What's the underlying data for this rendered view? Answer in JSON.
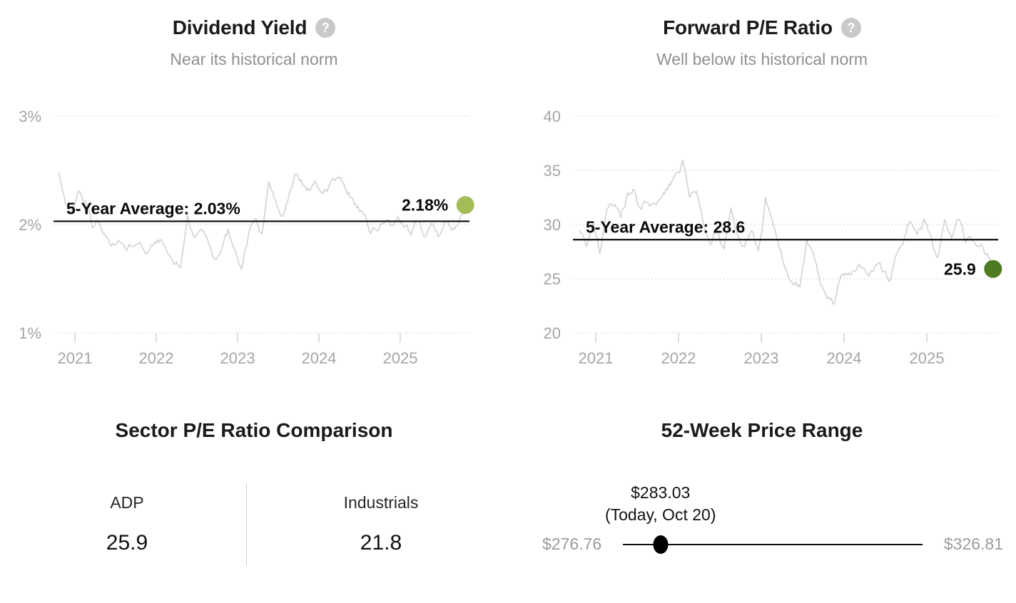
{
  "ui": {
    "help_glyph": "?"
  },
  "chart_data": [
    {
      "type": "line",
      "title": "Dividend Yield",
      "subtitle": "Near its historical norm",
      "x_start": 2020.8,
      "x_end": 2025.8,
      "x_ticks": [
        2021,
        2022,
        2023,
        2024,
        2025
      ],
      "ylim": [
        1,
        3
      ],
      "y_ticks": [
        3,
        2,
        1
      ],
      "y_suffix": "%",
      "grid": "dotted-horizontal",
      "average": 2.03,
      "average_label": "5-Year Average: 2.03%",
      "current": 2.18,
      "current_label": "2.18%",
      "line_color": "#d2d2d2",
      "average_line_color": "#0a0a0a",
      "dot_color": "#a4bd58",
      "values": [
        2.48,
        2.18,
        2.12,
        2.32,
        2.2,
        1.98,
        2.04,
        1.9,
        1.82,
        1.86,
        1.74,
        1.82,
        1.88,
        1.72,
        1.8,
        1.86,
        1.74,
        1.64,
        1.6,
        2.1,
        1.86,
        1.98,
        1.88,
        1.7,
        1.8,
        1.94,
        1.8,
        1.6,
        1.92,
        2.06,
        1.88,
        2.4,
        2.2,
        2.06,
        2.25,
        2.47,
        2.38,
        2.32,
        2.36,
        2.3,
        2.38,
        2.43,
        2.36,
        2.28,
        2.16,
        2.06,
        1.95,
        1.92,
        2.04,
        2.0,
        2.08,
        1.96,
        1.92,
        2.06,
        1.94,
        2.02,
        1.92,
        2.08,
        1.94,
        2.05,
        2.18
      ]
    },
    {
      "type": "line",
      "title": "Forward P/E Ratio",
      "subtitle": "Well below its historical norm",
      "x_start": 2020.8,
      "x_end": 2025.8,
      "x_ticks": [
        2021,
        2022,
        2023,
        2024,
        2025
      ],
      "ylim": [
        20,
        40
      ],
      "y_ticks": [
        40,
        35,
        30,
        25,
        20
      ],
      "y_suffix": "",
      "grid": "dotted-horizontal",
      "average": 28.6,
      "average_label": "5-Year Average: 28.6",
      "current": 25.9,
      "current_label": "25.9",
      "line_color": "#d2d2d2",
      "average_line_color": "#0a0a0a",
      "dot_color": "#4e7a22",
      "values": [
        29.5,
        28.0,
        30.3,
        27.4,
        31.9,
        32.1,
        30.4,
        32.6,
        33.0,
        31.1,
        32.3,
        31.5,
        32.2,
        33.5,
        34.5,
        35.8,
        31.9,
        33.4,
        29.8,
        27.7,
        29.5,
        27.3,
        30.9,
        28.5,
        28.0,
        29.7,
        27.6,
        32.4,
        29.8,
        28.0,
        26.0,
        24.5,
        24.0,
        28.2,
        27.0,
        24.5,
        23.5,
        22.7,
        25.1,
        25.5,
        26.0,
        26.4,
        25.4,
        26.1,
        25.8,
        24.9,
        27.2,
        28.6,
        30.5,
        29.3,
        30.2,
        28.8,
        27.0,
        30.5,
        28.4,
        30.5,
        28.4,
        28.3,
        28.5,
        27.3,
        25.9
      ]
    }
  ],
  "sector_comparison": {
    "title": "Sector P/E Ratio Comparison",
    "items": [
      {
        "label": "ADP",
        "value": "25.9"
      },
      {
        "label": "Industrials",
        "value": "21.8"
      }
    ]
  },
  "price_range": {
    "title": "52-Week Price Range",
    "current_price": "$283.03",
    "current_date": "(Today, Oct 20)",
    "low": "$276.76",
    "high": "$326.81"
  }
}
